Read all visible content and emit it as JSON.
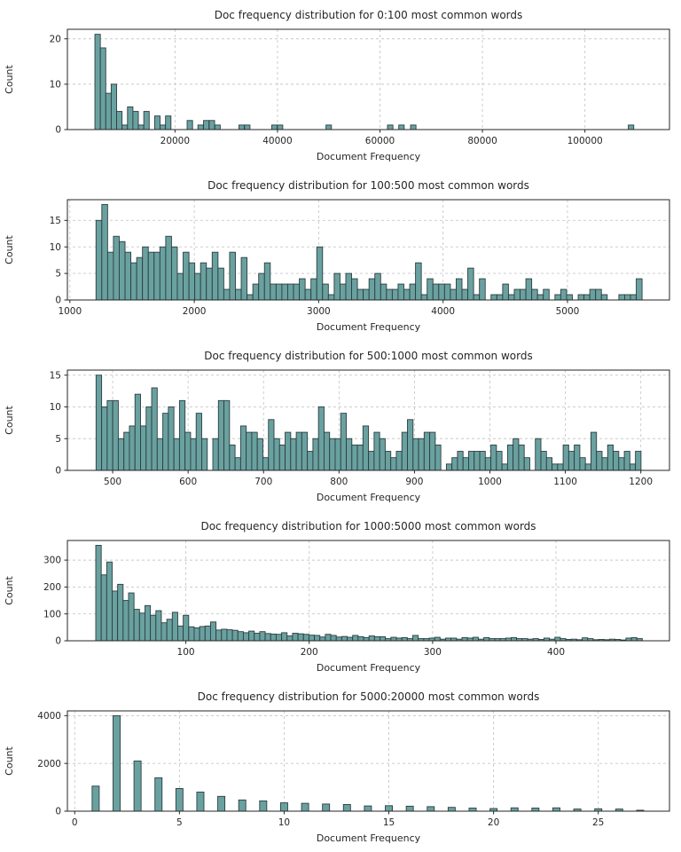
{
  "style": {
    "bar_fill": "#69a1a0",
    "bar_edge": "#2e3d3f",
    "grid_color": "#c8c8c8",
    "axis_color": "#262626",
    "text_color": "#262626",
    "background": "#ffffff"
  },
  "chart_data": [
    {
      "type": "bar",
      "title": "Doc frequency distribution for 0:100 most common words",
      "xlabel": "Document Frequency",
      "ylabel": "Count",
      "x": [
        4900,
        5960,
        7020,
        8080,
        9140,
        10200,
        11260,
        12320,
        13380,
        14440,
        16560,
        17620,
        18680,
        22900,
        25000,
        26100,
        27200,
        28300,
        33000,
        34100,
        39400,
        40500,
        50000,
        62000,
        64200,
        66500,
        109000
      ],
      "values": [
        21,
        18,
        8,
        10,
        4,
        1,
        5,
        4,
        1,
        4,
        3,
        1,
        3,
        2,
        1,
        2,
        2,
        1,
        1,
        1,
        1,
        1,
        1,
        1,
        1,
        1,
        1
      ],
      "bin_width": 1060,
      "xlim": [
        -1000,
        116500
      ],
      "ylim": [
        0,
        22.1
      ],
      "xticks": [
        20000,
        40000,
        60000,
        80000,
        100000
      ],
      "yticks": [
        0,
        10,
        20
      ],
      "grid": true,
      "legend": null
    },
    {
      "type": "bar",
      "title": "Doc frequency distribution for 100:500 most common words",
      "xlabel": "Document Frequency",
      "ylabel": "Count",
      "x_start": 1210,
      "x_step": 46.7,
      "values": [
        15,
        18,
        9,
        12,
        11,
        9,
        7,
        8,
        10,
        9,
        9,
        10,
        12,
        10,
        5,
        9,
        7,
        5,
        7,
        6,
        9,
        6,
        2,
        9,
        2,
        8,
        1,
        3,
        5,
        7,
        3,
        3,
        3,
        3,
        3,
        4,
        2,
        4,
        10,
        3,
        1,
        5,
        3,
        5,
        4,
        2,
        2,
        4,
        5,
        3,
        2,
        2,
        3,
        2,
        3,
        7,
        1,
        4,
        3,
        3,
        3,
        2,
        4,
        2,
        6,
        1,
        4,
        0,
        1,
        1,
        3,
        1,
        2,
        2,
        4,
        2,
        1,
        2,
        0,
        1,
        2,
        1,
        0,
        1,
        1,
        2,
        2,
        1,
        0,
        0,
        1,
        1,
        1,
        4
      ],
      "xlim": [
        980,
        5820
      ],
      "ylim": [
        0,
        18.9
      ],
      "xticks": [
        1000,
        2000,
        3000,
        4000,
        5000
      ],
      "yticks": [
        0,
        5,
        10,
        15
      ],
      "grid": true,
      "legend": null
    },
    {
      "type": "bar",
      "title": "Doc frequency distribution for 500:1000 most common words",
      "xlabel": "Document Frequency",
      "ylabel": "Count",
      "x_start": 478,
      "x_step": 7.37,
      "values": [
        15,
        10,
        11,
        11,
        5,
        6,
        7,
        12,
        7,
        10,
        13,
        5,
        9,
        10,
        5,
        11,
        6,
        5,
        9,
        5,
        0,
        5,
        11,
        11,
        4,
        2,
        7,
        6,
        6,
        5,
        2,
        8,
        5,
        4,
        6,
        5,
        6,
        6,
        3,
        5,
        10,
        6,
        5,
        5,
        9,
        5,
        4,
        4,
        7,
        3,
        6,
        5,
        3,
        2,
        3,
        6,
        8,
        5,
        5,
        6,
        6,
        4,
        0,
        1,
        2,
        3,
        2,
        3,
        3,
        3,
        2,
        4,
        3,
        1,
        4,
        5,
        4,
        2,
        0,
        5,
        3,
        2,
        1,
        1,
        4,
        3,
        4,
        2,
        1,
        6,
        3,
        2,
        4,
        3,
        2,
        3,
        1,
        3
      ],
      "xlim": [
        440,
        1238
      ],
      "ylim": [
        0,
        15.8
      ],
      "xticks": [
        500,
        600,
        700,
        800,
        900,
        1000,
        1100,
        1200
      ],
      "yticks": [
        0,
        5,
        10,
        15
      ],
      "grid": true,
      "legend": null
    },
    {
      "type": "bar",
      "title": "Doc frequency distribution for 1000:5000 most common words",
      "xlabel": "Document Frequency",
      "ylabel": "Count",
      "x_start": 27,
      "x_step": 4.43,
      "values": [
        355,
        245,
        293,
        185,
        210,
        150,
        178,
        117,
        103,
        131,
        95,
        112,
        67,
        80,
        106,
        55,
        95,
        52,
        48,
        53,
        55,
        70,
        40,
        43,
        41,
        39,
        34,
        30,
        36,
        28,
        34,
        27,
        25,
        24,
        30,
        18,
        28,
        26,
        24,
        21,
        20,
        14,
        24,
        20,
        14,
        16,
        13,
        20,
        15,
        12,
        18,
        15,
        15,
        8,
        13,
        10,
        12,
        8,
        20,
        8,
        8,
        10,
        13,
        6,
        10,
        10,
        6,
        12,
        10,
        13,
        6,
        12,
        8,
        8,
        8,
        10,
        12,
        8,
        8,
        6,
        8,
        5,
        10,
        6,
        13,
        8,
        5,
        6,
        4,
        11,
        8,
        4,
        5,
        4,
        6,
        5,
        3,
        10,
        12,
        8
      ],
      "xlim": [
        4,
        492
      ],
      "ylim": [
        0,
        373
      ],
      "xticks": [
        100,
        200,
        300,
        400
      ],
      "yticks": [
        0,
        100,
        200,
        300
      ],
      "grid": true,
      "legend": null
    },
    {
      "type": "bar",
      "title": "Doc frequency distribution for 5000:20000 most common words",
      "xlabel": "Document Frequency",
      "ylabel": "Count",
      "x": [
        1,
        2,
        3,
        4,
        5,
        6,
        7,
        8,
        9,
        10,
        11,
        12,
        13,
        14,
        15,
        16,
        17,
        18,
        19,
        20,
        21,
        22,
        23,
        24,
        25,
        26,
        27
      ],
      "values": [
        1050,
        4000,
        2100,
        1400,
        950,
        800,
        620,
        470,
        430,
        350,
        330,
        300,
        280,
        220,
        230,
        210,
        190,
        160,
        130,
        110,
        140,
        130,
        140,
        90,
        100,
        90,
        40
      ],
      "bin_width": 0.34,
      "xlim": [
        -0.35,
        28.4
      ],
      "ylim": [
        0,
        4200
      ],
      "xticks": [
        0,
        5,
        10,
        15,
        20,
        25
      ],
      "yticks": [
        0,
        2000,
        4000
      ],
      "grid": true,
      "legend": null
    }
  ]
}
